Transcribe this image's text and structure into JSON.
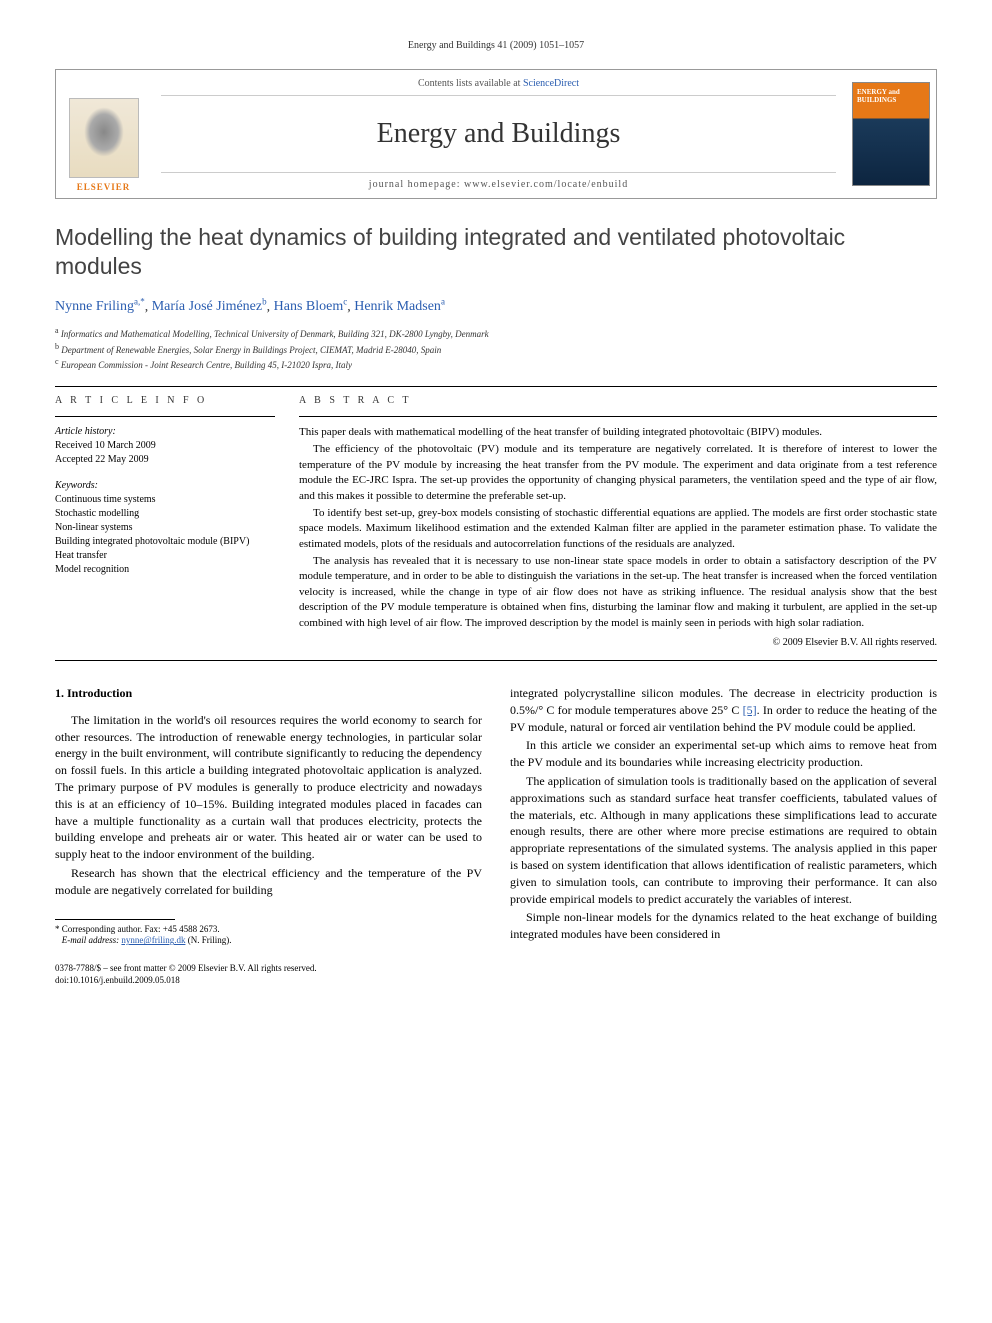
{
  "running_header": "Energy and Buildings 41 (2009) 1051–1057",
  "masthead": {
    "contents_prefix": "Contents lists available at ",
    "contents_link": "ScienceDirect",
    "journal_name": "Energy and Buildings",
    "homepage_prefix": "journal homepage: ",
    "homepage_url": "www.elsevier.com/locate/enbuild",
    "elsevier_label": "ELSEVIER",
    "cover_text": "ENERGY and BUILDINGS"
  },
  "title": "Modelling the heat dynamics of building integrated and ventilated photovoltaic modules",
  "authors": [
    {
      "name": "Nynne Friling",
      "sup": "a,*"
    },
    {
      "name": "María José Jiménez",
      "sup": "b"
    },
    {
      "name": "Hans Bloem",
      "sup": "c"
    },
    {
      "name": "Henrik Madsen",
      "sup": "a"
    }
  ],
  "affiliations": [
    {
      "sup": "a",
      "text": "Informatics and Mathematical Modelling, Technical University of Denmark, Building 321, DK-2800 Lyngby, Denmark"
    },
    {
      "sup": "b",
      "text": "Department of Renewable Energies, Solar Energy in Buildings Project, CIEMAT, Madrid E-28040, Spain"
    },
    {
      "sup": "c",
      "text": "European Commission - Joint Research Centre, Building 45, I-21020 Ispra, Italy"
    }
  ],
  "article_info": {
    "label": "A R T I C L E   I N F O",
    "history_label": "Article history:",
    "received": "Received 10 March 2009",
    "accepted": "Accepted 22 May 2009",
    "keywords_label": "Keywords:",
    "keywords": [
      "Continuous time systems",
      "Stochastic modelling",
      "Non-linear systems",
      "Building integrated photovoltaic module (BIPV)",
      "Heat transfer",
      "Model recognition"
    ]
  },
  "abstract": {
    "label": "A B S T R A C T",
    "paragraphs": [
      "This paper deals with mathematical modelling of the heat transfer of building integrated photovoltaic (BIPV) modules.",
      "The efficiency of the photovoltaic (PV) module and its temperature are negatively correlated. It is therefore of interest to lower the temperature of the PV module by increasing the heat transfer from the PV module. The experiment and data originate from a test reference module the EC-JRC Ispra. The set-up provides the opportunity of changing physical parameters, the ventilation speed and the type of air flow, and this makes it possible to determine the preferable set-up.",
      "To identify best set-up, grey-box models consisting of stochastic differential equations are applied. The models are first order stochastic state space models. Maximum likelihood estimation and the extended Kalman filter are applied in the parameter estimation phase. To validate the estimated models, plots of the residuals and autocorrelation functions of the residuals are analyzed.",
      "The analysis has revealed that it is necessary to use non-linear state space models in order to obtain a satisfactory description of the PV module temperature, and in order to be able to distinguish the variations in the set-up. The heat transfer is increased when the forced ventilation velocity is increased, while the change in type of air flow does not have as striking influence. The residual analysis show that the best description of the PV module temperature is obtained when fins, disturbing the laminar flow and making it turbulent, are applied in the set-up combined with high level of air flow. The improved description by the model is mainly seen in periods with high solar radiation."
    ],
    "copyright": "© 2009 Elsevier B.V. All rights reserved."
  },
  "body": {
    "section_heading": "1. Introduction",
    "left_paragraphs": [
      "The limitation in the world's oil resources requires the world economy to search for other resources. The introduction of renewable energy technologies, in particular solar energy in the built environment, will contribute significantly to reducing the dependency on fossil fuels. In this article a building integrated photovoltaic application is analyzed. The primary purpose of PV modules is generally to produce electricity and nowadays this is at an efficiency of 10–15%. Building integrated modules placed in facades can have a multiple functionality as a curtain wall that produces electricity, protects the building envelope and preheats air or water. This heated air or water can be used to supply heat to the indoor environment of the building.",
      "Research has shown that the electrical efficiency and the temperature of the PV module are negatively correlated for building"
    ],
    "right_paragraphs": [
      "integrated polycrystalline silicon modules. The decrease in electricity production is 0.5%/° C for module temperatures above 25° C [5]. In order to reduce the heating of the PV module, natural or forced air ventilation behind the PV module could be applied.",
      "In this article we consider an experimental set-up which aims to remove heat from the PV module and its boundaries while increasing electricity production.",
      "The application of simulation tools is traditionally based on the application of several approximations such as standard surface heat transfer coefficients, tabulated values of the materials, etc. Although in many applications these simplifications lead to accurate enough results, there are other where more precise estimations are required to obtain appropriate representations of the simulated systems. The analysis applied in this paper is based on system identification that allows identification of realistic parameters, which given to simulation tools, can contribute to improving their performance. It can also provide empirical models to predict accurately the variables of interest.",
      "Simple non-linear models for the dynamics related to the heat exchange of building integrated modules have been considered in"
    ],
    "ref5": "[5]"
  },
  "footnotes": {
    "corr_label": "* Corresponding author. Fax: +45 4588 2673.",
    "email_label": "E-mail address:",
    "email": "nynne@friling.dk",
    "email_suffix": "(N. Friling)."
  },
  "footer": {
    "issn_line": "0378-7788/$ – see front matter © 2009 Elsevier B.V. All rights reserved.",
    "doi_line": "doi:10.1016/j.enbuild.2009.05.018"
  },
  "colors": {
    "link": "#2a5db0",
    "elsevier_orange": "#e67817",
    "text": "#000000"
  }
}
